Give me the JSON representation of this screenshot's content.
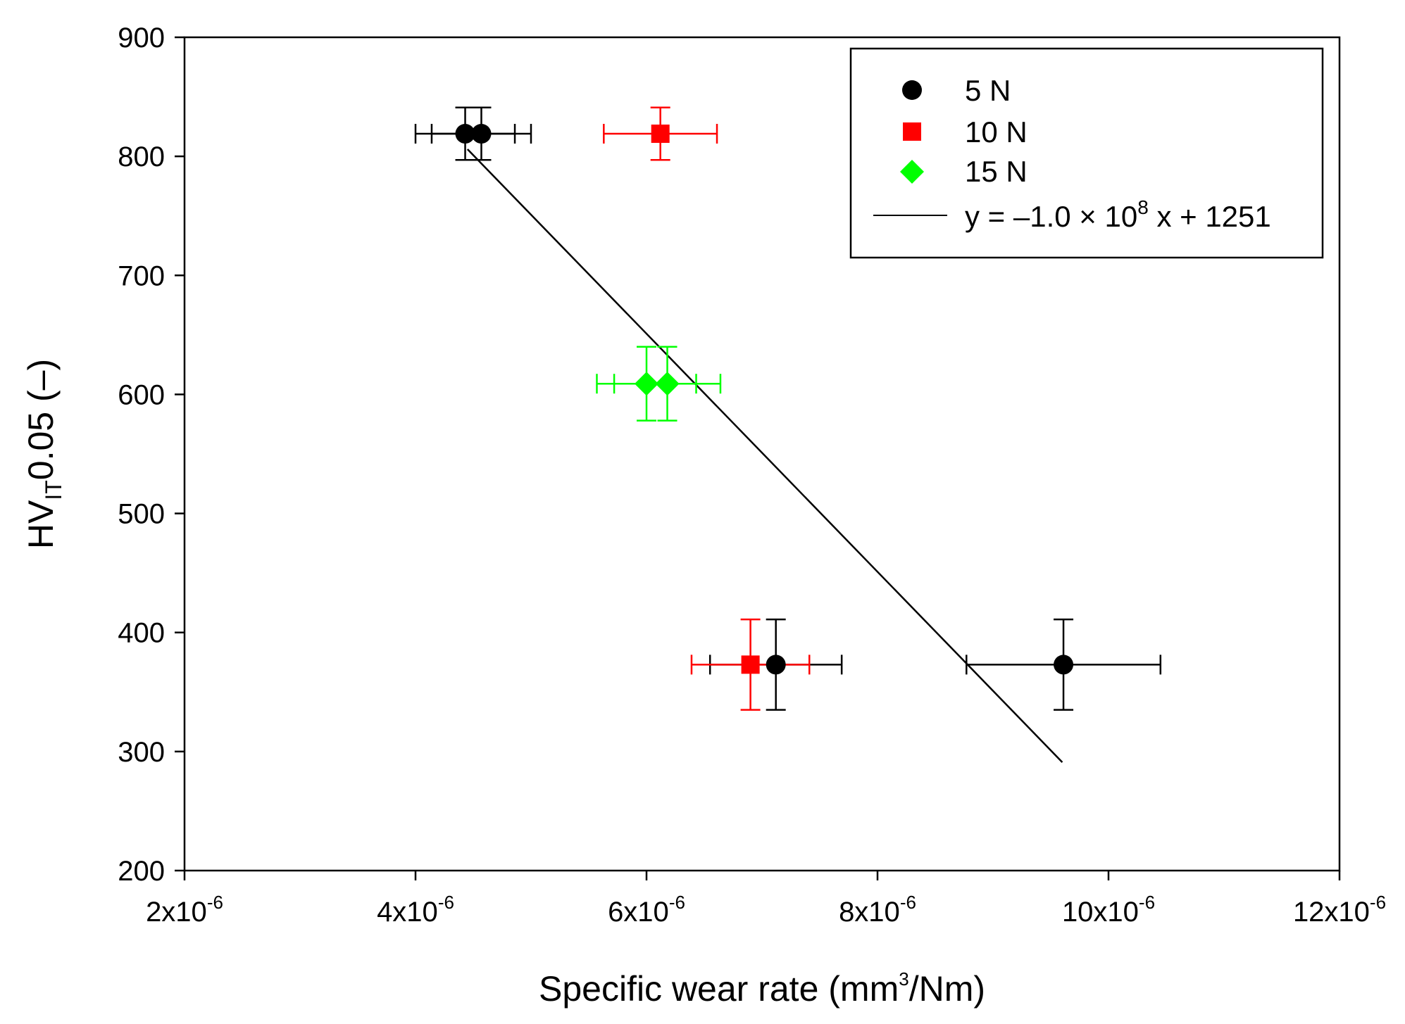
{
  "chart_data": {
    "type": "scatter",
    "xlabel": "Specific wear rate (mm³/Nm)",
    "xlabel_parts": {
      "main": "Specific wear rate (mm",
      "sup": "3",
      "rest": "/Nm)"
    },
    "ylabel": "HV_IT 0.05 (–)",
    "ylabel_parts": {
      "main": "HV",
      "sub": "IT",
      "rest": "0.05 (–)"
    },
    "xlim": [
      2e-06,
      1.2e-05
    ],
    "ylim": [
      200,
      900
    ],
    "x_ticks": [
      {
        "value": 2e-06,
        "base": "2x10",
        "exp": "-6"
      },
      {
        "value": 4e-06,
        "base": "4x10",
        "exp": "-6"
      },
      {
        "value": 6e-06,
        "base": "6x10",
        "exp": "-6"
      },
      {
        "value": 8e-06,
        "base": "8x10",
        "exp": "-6"
      },
      {
        "value": 1e-05,
        "base": "10x10",
        "exp": "-6"
      },
      {
        "value": 1.2e-05,
        "base": "12x10",
        "exp": "-6"
      }
    ],
    "y_ticks": [
      {
        "value": 200,
        "label": "200"
      },
      {
        "value": 300,
        "label": "300"
      },
      {
        "value": 400,
        "label": "400"
      },
      {
        "value": 500,
        "label": "500"
      },
      {
        "value": 600,
        "label": "600"
      },
      {
        "value": 700,
        "label": "700"
      },
      {
        "value": 800,
        "label": "800"
      },
      {
        "value": 900,
        "label": "900"
      }
    ],
    "legend_position": "top-right",
    "series": [
      {
        "name": "5 N",
        "marker": "circle",
        "color": "#000000",
        "points": [
          {
            "x": 4.43e-06,
            "y": 819,
            "xerr": 4.3e-07,
            "yerr": 22
          },
          {
            "x": 4.57e-06,
            "y": 819,
            "xerr": 4.3e-07,
            "yerr": 22
          },
          {
            "x": 7.12e-06,
            "y": 373,
            "xerr": 5.7e-07,
            "yerr": 38
          },
          {
            "x": 9.61e-06,
            "y": 373,
            "xerr": 8.4e-07,
            "yerr": 38
          }
        ]
      },
      {
        "name": "10 N",
        "marker": "square",
        "color": "#ff0000",
        "points": [
          {
            "x": 6.12e-06,
            "y": 819,
            "xerr": 4.9e-07,
            "yerr": 22
          },
          {
            "x": 6.9e-06,
            "y": 373,
            "xerr": 5.1e-07,
            "yerr": 38
          }
        ]
      },
      {
        "name": "15 N",
        "marker": "diamond",
        "color": "#00ff00",
        "points": [
          {
            "x": 6e-06,
            "y": 609,
            "xerr": 4.3e-07,
            "yerr": 31
          },
          {
            "x": 6.18e-06,
            "y": 609,
            "xerr": 4.6e-07,
            "yerr": 31
          }
        ]
      }
    ],
    "fit_line": {
      "name": "y = –1.0 × 10⁸ x + 1251",
      "label_parts": {
        "a": "y = –1.0 × 10",
        "sup": "8",
        "b": " x + 1251"
      },
      "slope": -100000000.0,
      "intercept": 1251,
      "x_range": [
        4.45e-06,
        9.6e-06
      ],
      "color": "#000000"
    }
  }
}
